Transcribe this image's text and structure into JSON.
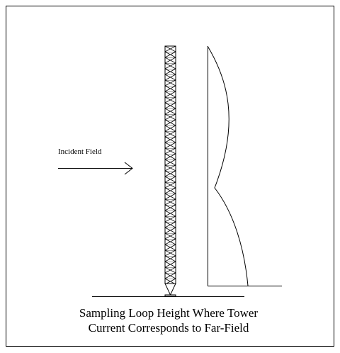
{
  "diagram": {
    "incident_label": "Incident Field",
    "caption": [
      "Sampling Loop Height Where Tower",
      "Current Corresponds to Far-Field"
    ]
  }
}
